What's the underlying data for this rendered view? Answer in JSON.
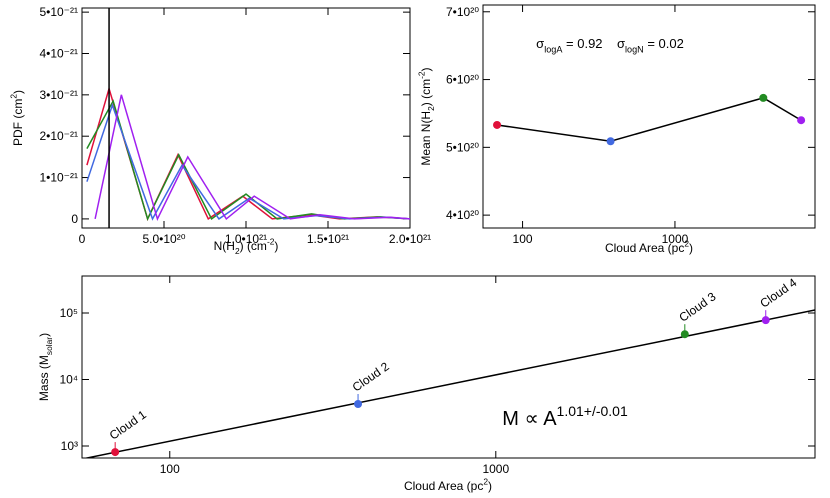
{
  "chart_data": [
    {
      "type": "line",
      "xlabel": [
        {
          "text": "N(H"
        },
        {
          "text": "2",
          "pos": "sub"
        },
        {
          "text": ") (cm"
        },
        {
          "text": "-2",
          "pos": "sup"
        },
        {
          "text": ")"
        }
      ],
      "ylabel": [
        {
          "text": "PDF (cm"
        },
        {
          "text": "2",
          "pos": "sup"
        },
        {
          "text": ")"
        }
      ],
      "xlim": [
        0,
        2e+21
      ],
      "xticks": [
        0,
        {
          "value": 5e+20,
          "label": "5.0•10²⁰"
        },
        {
          "value": 1e+21,
          "label": "1.0•10²¹"
        },
        {
          "value": 1.5e+21,
          "label": "1.5•10²¹"
        },
        {
          "value": 2e+21,
          "label": "2.0•10²¹"
        }
      ],
      "ylim": [
        -2.2e-22,
        5.1e-21
      ],
      "yticks": [
        0,
        {
          "value": 1e-21,
          "label": "1•10⁻²¹"
        },
        {
          "value": 2e-21,
          "label": "2•10⁻²¹"
        },
        {
          "value": 3e-21,
          "label": "3•10⁻²¹"
        },
        {
          "value": 4e-21,
          "label": "4•10⁻²¹"
        },
        {
          "value": 5e-21,
          "label": "5•10⁻²¹"
        }
      ],
      "vline": 1.65e+20,
      "series": [
        {
          "color": "#e0103a",
          "x": [
            3e+19,
            1.65e+20,
            4e+20,
            5.85e+20,
            7.7e+20,
            9.8e+20,
            1.16e+21,
            1.39e+21,
            1.57e+21,
            1.8e+21,
            2e+21
          ],
          "values": [
            1.3e-21,
            3.15e-21,
            0,
            1.55e-21,
            0,
            5.5e-22,
            0,
            1e-22,
            0,
            5e-23,
            0
          ]
        },
        {
          "color": "#228b22",
          "x": [
            3e+19,
            1.9e+20,
            4e+20,
            5.9e+20,
            7.9e+20,
            1e+21,
            1.19e+21,
            1.4e+21,
            1.6e+21,
            1.82e+21,
            2e+21
          ],
          "values": [
            1.7e-21,
            2.85e-21,
            0,
            1.55e-21,
            0,
            6e-22,
            0,
            1.2e-22,
            0,
            5e-23,
            0
          ]
        },
        {
          "color": "#4169e1",
          "x": [
            3e+19,
            1.85e+20,
            4.3e+20,
            6.1e+20,
            8.35e+20,
            1.02e+21,
            1.23e+21,
            1.43e+21,
            1.63e+21,
            1.85e+21,
            2e+21
          ],
          "values": [
            9e-22,
            2.75e-21,
            0,
            1.3e-21,
            0,
            5e-22,
            0,
            8e-23,
            0,
            4e-23,
            0
          ]
        },
        {
          "color": "#a020f0",
          "x": [
            8e+19,
            2.4e+20,
            4.6e+20,
            6.45e+20,
            8.8e+20,
            1.05e+21,
            1.27e+21,
            1.45e+21,
            1.66e+21,
            1.88e+21,
            2e+21
          ],
          "values": [
            0,
            3e-21,
            0,
            1.5e-21,
            0,
            5.5e-22,
            0,
            1e-22,
            0,
            4e-23,
            0
          ]
        }
      ]
    },
    {
      "type": "line",
      "markers": true,
      "logx": true,
      "xlabel": [
        {
          "text": "Cloud Area (pc"
        },
        {
          "text": "2",
          "pos": "sup"
        },
        {
          "text": ")"
        }
      ],
      "ylabel": [
        {
          "text": "Mean N(H"
        },
        {
          "text": "2",
          "pos": "sub"
        },
        {
          "text": ") (cm"
        },
        {
          "text": "-2",
          "pos": "sup"
        },
        {
          "text": ")"
        }
      ],
      "annotation": [
        {
          "text": "σ"
        },
        {
          "text": "logA",
          "pos": "sub"
        },
        {
          "text": " = 0.92    σ"
        },
        {
          "text": "logN",
          "pos": "sub"
        },
        {
          "text": " = 0.02"
        }
      ],
      "xlim": [
        55,
        8300
      ],
      "xticks": [
        100,
        1000
      ],
      "ylim": [
        3.81e+20,
        7.1e+20
      ],
      "yticks": [
        {
          "value": 4e+20,
          "label": "4•10²⁰"
        },
        {
          "value": 5e+20,
          "label": "5•10²⁰"
        },
        {
          "value": 6e+20,
          "label": "6•10²⁰"
        },
        {
          "value": 7e+20,
          "label": "7•10²⁰"
        }
      ],
      "line_color": "#000000",
      "x": [
        68,
        378,
        3800,
        6730
      ],
      "values": [
        5.33e+20,
        5.09e+20,
        5.73e+20,
        5.4e+20
      ],
      "point_colors": [
        "#e0103a",
        "#4169e1",
        "#228b22",
        "#a020f0"
      ]
    },
    {
      "type": "scatter",
      "logx": true,
      "logy": true,
      "xlabel": [
        {
          "text": "Cloud Area (pc"
        },
        {
          "text": "2",
          "pos": "sup"
        },
        {
          "text": ")"
        }
      ],
      "ylabel": [
        {
          "text": "Mass (M"
        },
        {
          "text": "solar",
          "pos": "sub"
        },
        {
          "text": ")"
        }
      ],
      "annotation": [
        {
          "text": "M ∝ A"
        },
        {
          "text": "1.01+/-0.01",
          "pos": "sup"
        }
      ],
      "xlim": [
        53.8,
        9530
      ],
      "xticks": [
        100,
        1000
      ],
      "ylim": [
        660,
        360000
      ],
      "yticks": [
        {
          "value": 1000,
          "label": "10³"
        },
        {
          "value": 10000,
          "label": "10⁴"
        },
        {
          "value": 100000,
          "label": "10⁵"
        }
      ],
      "x": [
        68,
        378,
        3800,
        6730
      ],
      "values": [
        810,
        4280,
        48000,
        78000
      ],
      "point_labels": [
        "Cloud 1",
        "Cloud 2",
        "Cloud 3",
        "Cloud 4"
      ],
      "point_colors": [
        "#e0103a",
        "#4169e1",
        "#228b22",
        "#a020f0"
      ],
      "fit_x": [
        53.8,
        9530
      ],
      "fit_y": [
        637,
        111000
      ],
      "fit_color": "#000000"
    }
  ]
}
